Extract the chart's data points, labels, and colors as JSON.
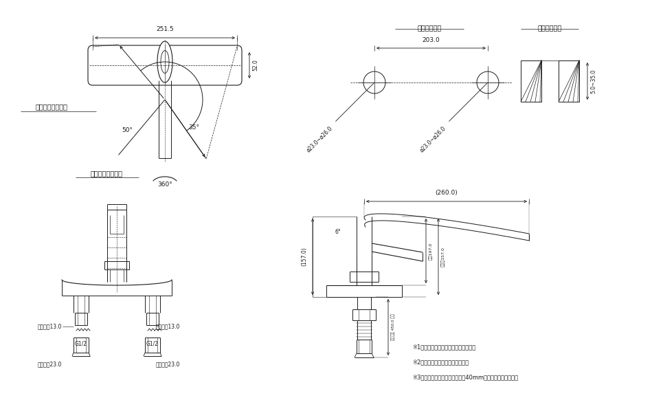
{
  "bg_color": "#ffffff",
  "lc": "#1a1a1a",
  "tc": "#1a1a1a",
  "labels": {
    "handle_rot": "ハンドル回転角度",
    "spout_rot": "スパウト回転角度",
    "angle_left": "50°",
    "angle_right": "35°",
    "angle_360": "360°",
    "dim_251": "251.5",
    "dim_52": "52.0",
    "label_tenban1": "天板取付穴径",
    "label_tenban2": "天板締付範囲",
    "dim_203": "203.0",
    "dim_phi": "ø23.0~ø26.0",
    "dim_thick": "5.0~35.0",
    "hex13": "六角対辺13.0",
    "hex23": "六角対辺23.0",
    "g12": "G1/2",
    "dim_260": "(260.0)",
    "dim_157": "(157.0)",
    "dim_197a": "全長197.0",
    "dim_157b": "内対辺157.0",
    "dim_450": "配管長さ 450.0 標準",
    "angle6": "6°",
    "note1": "※1　（　）内寸法は参考寸法である。",
    "note2": "※2　止水栓を必ず設置すること。",
    "note3": "※3　ブレードパイプは曲げ半彄40mm以上を確保すること。"
  }
}
